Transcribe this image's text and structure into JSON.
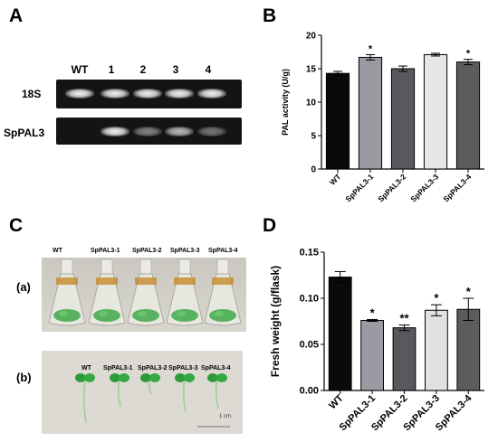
{
  "panels": {
    "a": "A",
    "b": "B",
    "c": "C",
    "d": "D"
  },
  "gel": {
    "lanes": [
      "WT",
      "1",
      "2",
      "3",
      "4"
    ],
    "rows": [
      "18S",
      "SpPAL3"
    ],
    "band_intensity": {
      "18S": [
        1,
        1,
        1,
        1,
        1
      ],
      "SpPAL3": [
        0,
        1,
        0.5,
        0.75,
        0.45
      ]
    }
  },
  "photos": {
    "labels": [
      "WT",
      "SpPAL3-1",
      "SpPAL3-2",
      "SpPAL3-3",
      "SpPAL3-4"
    ],
    "sub_a": "(a)",
    "sub_b": "(b)",
    "scale": "1 cm"
  },
  "chart_data": [
    {
      "type": "bar",
      "categories": [
        "WT",
        "SpPAL3-1",
        "SpPAL3-2",
        "SpPAL3-3",
        "SpPAL3-4"
      ],
      "values": [
        14.3,
        16.7,
        15.0,
        17.1,
        16.0
      ],
      "errors": [
        0.3,
        0.4,
        0.4,
        0.2,
        0.4
      ],
      "significance": [
        "",
        "*",
        "",
        "",
        "*"
      ],
      "colors": [
        "#0a0a0a",
        "#9a9aa2",
        "#58585e",
        "#e6e6e6",
        "#5c5c5c"
      ],
      "ylabel": "PAL activity (U/g)",
      "ylim": [
        0,
        20
      ],
      "yticks": [
        "0",
        "5",
        "10",
        "15",
        "20"
      ]
    },
    {
      "type": "bar",
      "categories": [
        "WT",
        "SpPAL3-1",
        "SpPAL3-2",
        "SpPAL3-3",
        "SpPAL3-4"
      ],
      "values": [
        0.123,
        0.076,
        0.068,
        0.087,
        0.088
      ],
      "errors": [
        0.006,
        0.001,
        0.003,
        0.006,
        0.012
      ],
      "significance": [
        "",
        "*",
        "**",
        "*",
        "*"
      ],
      "colors": [
        "#0a0a0a",
        "#9a9aa2",
        "#58585e",
        "#e2e2e2",
        "#5c5c5c"
      ],
      "ylabel": "Fresh weight (g/flask)",
      "ylim": [
        0,
        0.15
      ],
      "yticks": [
        "0.00",
        "0.05",
        "0.10",
        "0.15"
      ]
    }
  ]
}
